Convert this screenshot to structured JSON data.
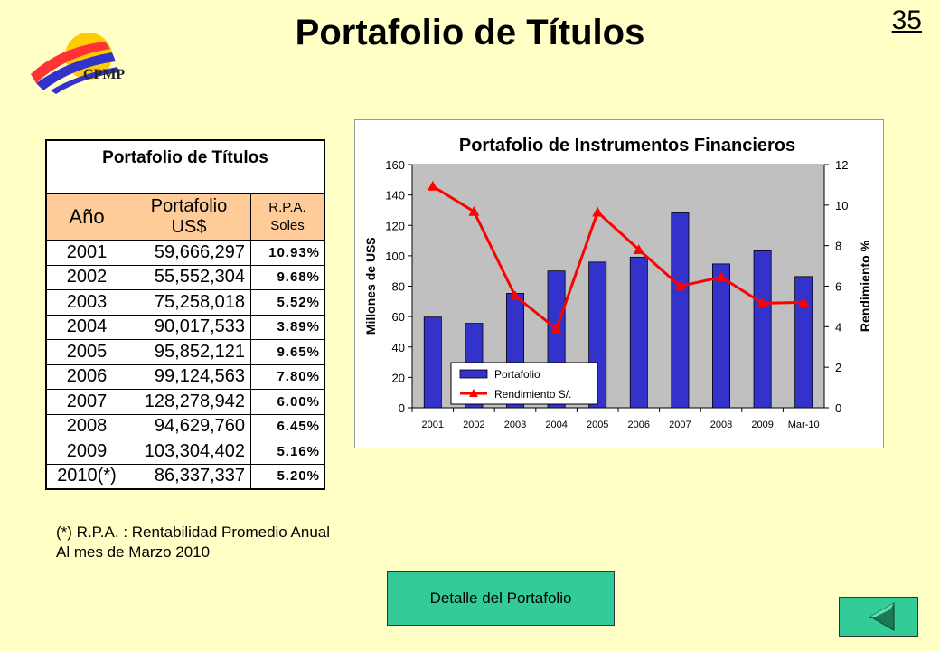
{
  "header": {
    "title": "Portafolio de Títulos",
    "page_number": "35",
    "logo_text": "CPMP"
  },
  "table": {
    "title": "Portafolio de Títulos",
    "headers": {
      "year": "Año",
      "portfolio_1": "Portafolio",
      "portfolio_2": "US$",
      "rpa_1": "R.P.A.",
      "rpa_2": "Soles"
    },
    "rows": [
      {
        "year": "2001",
        "portfolio": "59,666,297",
        "rpa": "10.93%"
      },
      {
        "year": "2002",
        "portfolio": "55,552,304",
        "rpa": "9.68%"
      },
      {
        "year": "2003",
        "portfolio": "75,258,018",
        "rpa": "5.52%"
      },
      {
        "year": "2004",
        "portfolio": "90,017,533",
        "rpa": "3.89%"
      },
      {
        "year": "2005",
        "portfolio": "95,852,121",
        "rpa": "9.65%"
      },
      {
        "year": "2006",
        "portfolio": "99,124,563",
        "rpa": "7.80%"
      },
      {
        "year": "2007",
        "portfolio": "128,278,942",
        "rpa": "6.00%"
      },
      {
        "year": "2008",
        "portfolio": "94,629,760",
        "rpa": "6.45%"
      },
      {
        "year": "2009",
        "portfolio": "103,304,402",
        "rpa": "5.16%"
      },
      {
        "year": "2010(*)",
        "portfolio": "86,337,337",
        "rpa": "5.20%"
      }
    ]
  },
  "chart_data": {
    "type": "bar",
    "title": "Portafolio de Instrumentos Financieros",
    "categories": [
      "2001",
      "2002",
      "2003",
      "2004",
      "2005",
      "2006",
      "2007",
      "2008",
      "2009",
      "Mar-10"
    ],
    "series": [
      {
        "name": "Portafolio",
        "type": "bar",
        "axis": "left",
        "color": "#3333cc",
        "values": [
          59.67,
          55.55,
          75.26,
          90.02,
          95.85,
          99.12,
          128.28,
          94.63,
          103.3,
          86.34
        ]
      },
      {
        "name": "Rendimiento S/.",
        "type": "line",
        "axis": "right",
        "color": "#ff0000",
        "values": [
          10.93,
          9.68,
          5.52,
          3.89,
          9.65,
          7.8,
          6.0,
          6.45,
          5.16,
          5.2
        ]
      }
    ],
    "ylabel": "Millones de US$",
    "ylim": [
      0,
      160
    ],
    "yticks": [
      0,
      20,
      40,
      60,
      80,
      100,
      120,
      140,
      160
    ],
    "y2label": "Rendimiento %",
    "y2lim": [
      0,
      12
    ],
    "y2ticks": [
      0,
      2,
      4,
      6,
      8,
      10,
      12
    ],
    "plot_background": "#c0c0c0",
    "legend_position": "bottom-left"
  },
  "notes": {
    "line1": "(*) R.P.A. : Rentabilidad Promedio Anual",
    "line2": "Al mes de Marzo 2010"
  },
  "buttons": {
    "detail": "Detalle del Portafolio",
    "back_icon": "triangle-left-icon"
  }
}
